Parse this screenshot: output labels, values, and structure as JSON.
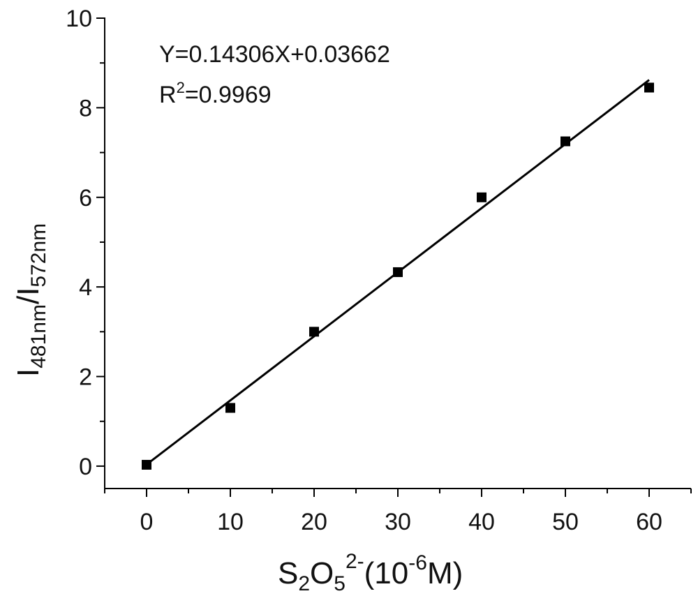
{
  "chart_data": {
    "type": "scatter",
    "x": [
      0,
      10,
      20,
      30,
      40,
      50,
      60
    ],
    "y": [
      0.03,
      1.3,
      3.0,
      4.33,
      6.0,
      7.25,
      8.45
    ],
    "fit": {
      "slope": 0.14306,
      "intercept": 0.03662
    },
    "xlim": [
      -5,
      65
    ],
    "ylim": [
      -0.5,
      10
    ],
    "x_ticks": [
      "0",
      "10",
      "20",
      "30",
      "40",
      "50",
      "60"
    ],
    "y_ticks": [
      "0",
      "2",
      "4",
      "6",
      "8",
      "10"
    ],
    "xlabel": {
      "main": "S",
      "sub1": "2",
      "mid": "O",
      "sub2": "5",
      "sup1": "2-",
      "paren": "(10",
      "sup2": "-6",
      "end": "M)"
    },
    "ylabel": {
      "i1": "I",
      "sub1": "481nm",
      "slash": "/I",
      "sub2": "572nm"
    },
    "equation": "Y=0.14306X+0.03662",
    "r2": {
      "base": "R",
      "sup": "2",
      "value": "=0.9969"
    },
    "colors": {
      "marker": "#000000",
      "line": "#000000",
      "axis": "#000000"
    },
    "grid": false
  }
}
